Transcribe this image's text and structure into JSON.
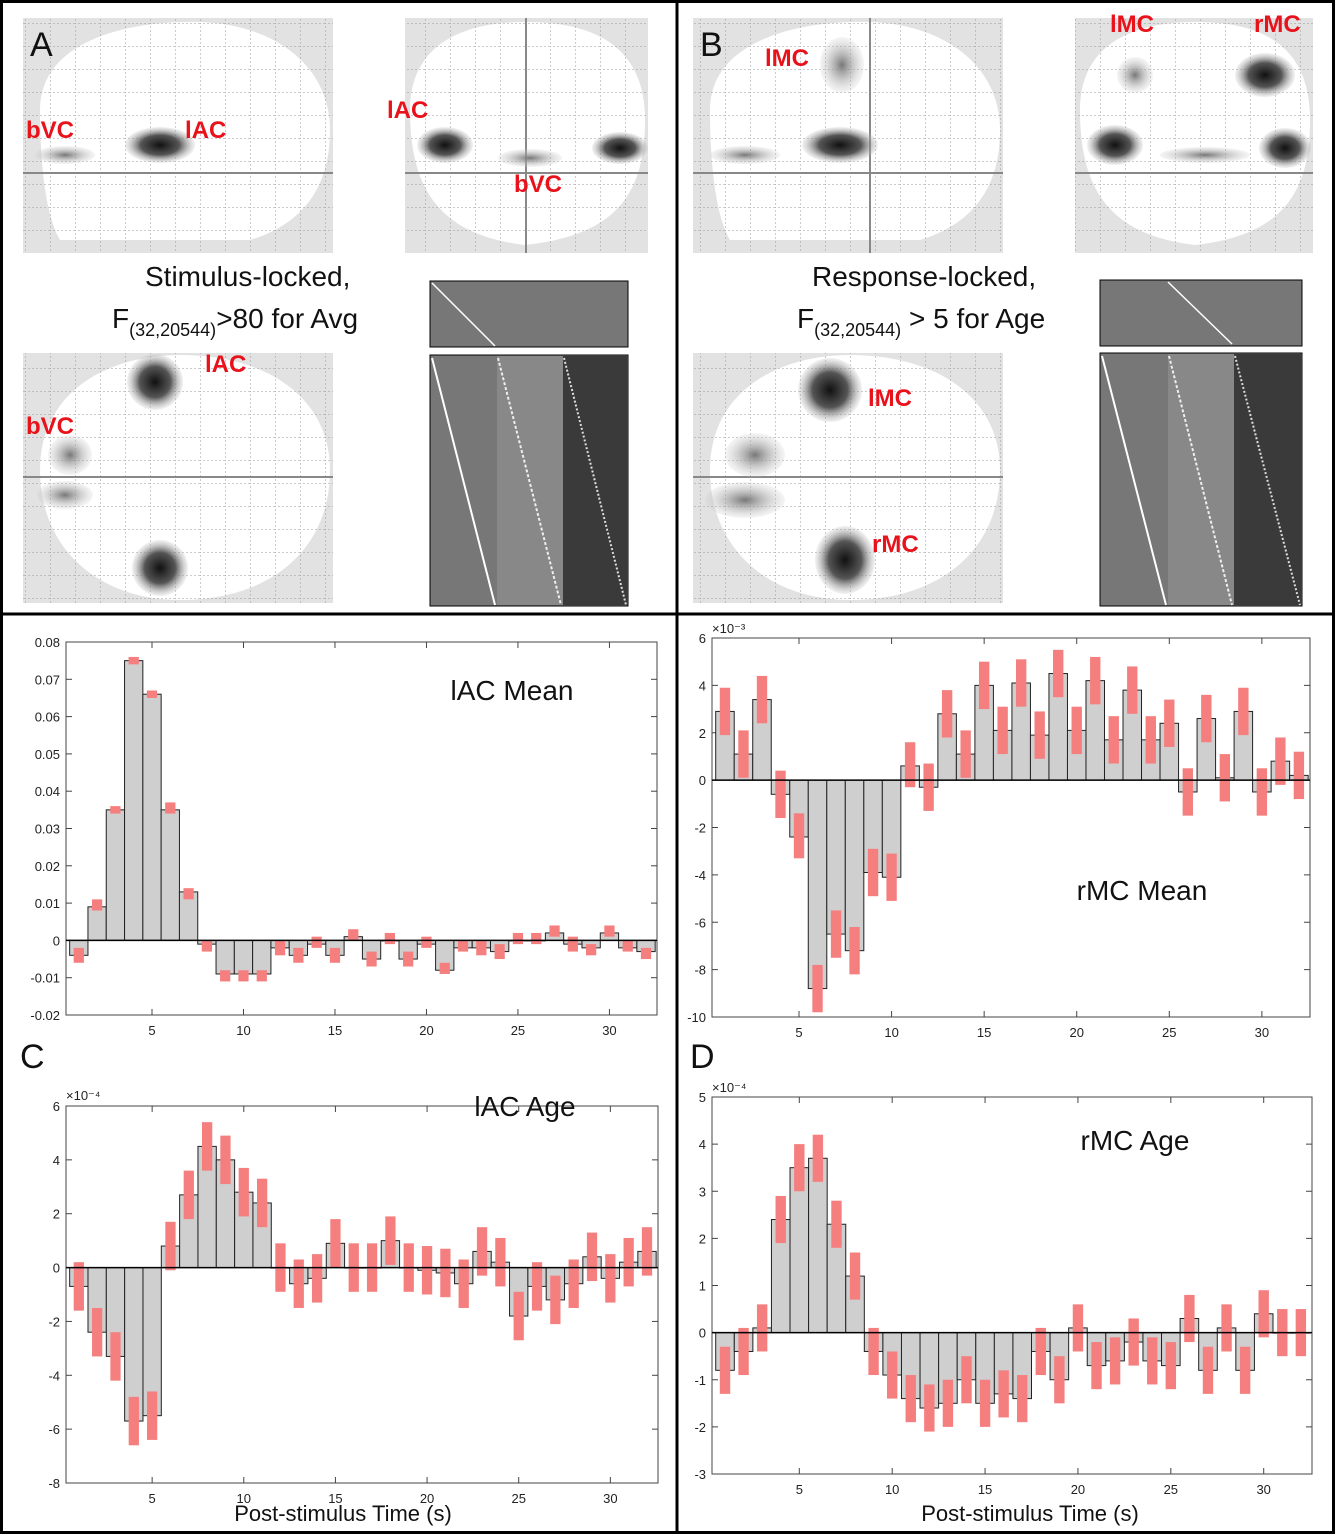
{
  "panels": {
    "A": {
      "letter": "A",
      "caption_line1": "Stimulus-locked,",
      "caption_line2_pre": "F",
      "caption_line2_sub": "(32,20544)",
      "caption_line2_post": ">80 for Avg",
      "labels": [
        "bVC",
        "lAC",
        "lAC",
        "bVC",
        "lAC",
        "bVC"
      ]
    },
    "B": {
      "letter": "B",
      "caption_line1": "Response-locked,",
      "caption_line2_pre": "F",
      "caption_line2_sub": "(32,20544)",
      "caption_line2_post": " > 5 for Age",
      "labels": [
        "lMC",
        "lMC",
        "rMC",
        "lMC",
        "rMC"
      ]
    },
    "C": {
      "letter": "C"
    },
    "D": {
      "letter": "D"
    }
  },
  "xlabel": "Post-stimulus Time (s)",
  "chart_data": [
    {
      "type": "bar",
      "title": "lAC Mean",
      "x": [
        1,
        2,
        3,
        4,
        5,
        6,
        7,
        8,
        9,
        10,
        11,
        12,
        13,
        14,
        15,
        16,
        17,
        18,
        19,
        20,
        21,
        22,
        23,
        24,
        25,
        26,
        27,
        28,
        29,
        30,
        31,
        32
      ],
      "values": [
        -0.004,
        0.009,
        0.035,
        0.075,
        0.066,
        0.035,
        0.013,
        -0.001,
        -0.009,
        -0.009,
        -0.009,
        -0.002,
        -0.004,
        -0.001,
        -0.004,
        0.001,
        -0.005,
        0.0,
        -0.005,
        -0.001,
        -0.008,
        -0.002,
        -0.002,
        -0.003,
        0.0,
        0.0,
        0.002,
        -0.001,
        -0.002,
        0.002,
        -0.002,
        -0.003
      ],
      "error_low": [
        -0.006,
        0.008,
        0.034,
        0.074,
        0.065,
        0.034,
        0.011,
        -0.003,
        -0.011,
        -0.011,
        -0.011,
        -0.004,
        -0.006,
        -0.002,
        -0.006,
        0.0,
        -0.007,
        -0.001,
        -0.007,
        -0.002,
        -0.009,
        -0.003,
        -0.004,
        -0.005,
        -0.001,
        -0.001,
        0.001,
        -0.003,
        -0.004,
        0.001,
        -0.003,
        -0.005
      ],
      "error_high": [
        -0.002,
        0.011,
        0.036,
        0.076,
        0.067,
        0.037,
        0.014,
        0.0,
        -0.008,
        -0.008,
        -0.008,
        0.0,
        -0.002,
        0.001,
        -0.002,
        0.003,
        -0.003,
        0.002,
        -0.003,
        0.001,
        -0.006,
        0.0,
        0.0,
        -0.001,
        0.002,
        0.002,
        0.004,
        0.001,
        -0.001,
        0.004,
        0.0,
        -0.002
      ],
      "xlim": [
        0.3,
        32.6
      ],
      "ylim": [
        -0.02,
        0.08
      ],
      "yticks": [
        -0.02,
        -0.01,
        0,
        0.01,
        0.02,
        0.03,
        0.04,
        0.05,
        0.06,
        0.07,
        0.08
      ],
      "ytick_labels": [
        "-0.02",
        "-0.01",
        "0",
        "0.01",
        "0.02",
        "0.03",
        "0.04",
        "0.05",
        "0.06",
        "0.07",
        "0.08"
      ],
      "xticks": [
        5,
        10,
        15,
        20,
        25,
        30
      ],
      "exponent_label": ""
    },
    {
      "type": "bar",
      "title": "rMC Mean",
      "x": [
        1,
        2,
        3,
        4,
        5,
        6,
        7,
        8,
        9,
        10,
        11,
        12,
        13,
        14,
        15,
        16,
        17,
        18,
        19,
        20,
        21,
        22,
        23,
        24,
        25,
        26,
        27,
        28,
        29,
        30,
        31,
        32
      ],
      "values": [
        2.9,
        1.1,
        3.4,
        -0.6,
        -2.4,
        -8.8,
        -6.5,
        -7.2,
        -3.9,
        -4.1,
        0.6,
        -0.3,
        2.8,
        1.1,
        4.0,
        2.1,
        4.1,
        1.9,
        4.5,
        2.1,
        4.2,
        1.7,
        3.8,
        1.7,
        2.4,
        -0.5,
        2.6,
        0.1,
        2.9,
        -0.5,
        0.8,
        0.2
      ],
      "error_low": [
        1.9,
        0.1,
        2.4,
        -1.6,
        -3.3,
        -9.8,
        -7.5,
        -8.2,
        -4.9,
        -5.1,
        -0.3,
        -1.3,
        1.8,
        0.1,
        3.0,
        1.1,
        3.1,
        0.9,
        3.5,
        1.1,
        3.2,
        0.7,
        2.8,
        0.7,
        1.4,
        -1.5,
        1.6,
        -0.9,
        1.9,
        -1.5,
        -0.2,
        -0.8
      ],
      "error_high": [
        3.9,
        2.1,
        4.4,
        0.4,
        -1.4,
        -7.8,
        -5.5,
        -6.2,
        -2.9,
        -3.1,
        1.6,
        0.7,
        3.8,
        2.1,
        5.0,
        3.1,
        5.1,
        2.9,
        5.5,
        3.1,
        5.2,
        2.7,
        4.8,
        2.7,
        3.4,
        0.5,
        3.6,
        1.1,
        3.9,
        0.5,
        1.8,
        1.2
      ],
      "xlim": [
        0.3,
        32.6
      ],
      "ylim": [
        -10,
        6
      ],
      "yticks": [
        -10,
        -8,
        -6,
        -4,
        -2,
        0,
        2,
        4,
        6
      ],
      "ytick_labels": [
        "-10",
        "-8",
        "-6",
        "-4",
        "-2",
        "0",
        "2",
        "4",
        "6"
      ],
      "xticks": [
        5,
        10,
        15,
        20,
        25,
        30
      ],
      "exponent_label": "×10⁻³"
    },
    {
      "type": "bar",
      "title": "lAC Age",
      "x": [
        1,
        2,
        3,
        4,
        5,
        6,
        7,
        8,
        9,
        10,
        11,
        12,
        13,
        14,
        15,
        16,
        17,
        18,
        19,
        20,
        21,
        22,
        23,
        24,
        25,
        26,
        27,
        28,
        29,
        30,
        31,
        32
      ],
      "values": [
        -0.7,
        -2.4,
        -3.3,
        -5.7,
        -5.5,
        0.8,
        2.7,
        4.5,
        4.0,
        2.8,
        2.4,
        0.0,
        -0.6,
        -0.4,
        0.9,
        0.0,
        0.0,
        1.0,
        0.0,
        -0.1,
        -0.2,
        -0.6,
        0.6,
        0.2,
        -1.8,
        -0.7,
        -1.2,
        -0.6,
        0.4,
        -0.4,
        0.2,
        0.6
      ],
      "error_low": [
        -1.6,
        -3.3,
        -4.2,
        -6.6,
        -6.4,
        -0.1,
        1.8,
        3.6,
        3.1,
        1.9,
        1.5,
        -0.9,
        -1.5,
        -1.3,
        0.0,
        -0.9,
        -0.9,
        0.1,
        -0.9,
        -1.0,
        -1.1,
        -1.5,
        -0.3,
        -0.7,
        -2.7,
        -1.6,
        -2.1,
        -1.5,
        -0.5,
        -1.3,
        -0.7,
        -0.3
      ],
      "error_high": [
        0.2,
        -1.5,
        -2.4,
        -4.8,
        -4.6,
        1.7,
        3.6,
        5.4,
        4.9,
        3.7,
        3.3,
        0.9,
        0.3,
        0.5,
        1.8,
        0.9,
        0.9,
        1.9,
        0.9,
        0.8,
        0.7,
        0.3,
        1.5,
        1.1,
        -0.9,
        0.2,
        -0.3,
        0.3,
        1.3,
        0.5,
        1.1,
        1.5
      ],
      "xlim": [
        0.3,
        32.6
      ],
      "ylim": [
        -8,
        6
      ],
      "yticks": [
        -8,
        -6,
        -4,
        -2,
        0,
        2,
        4,
        6
      ],
      "ytick_labels": [
        "-8",
        "-6",
        "-4",
        "-2",
        "0",
        "2",
        "4",
        "6"
      ],
      "xticks": [
        5,
        10,
        15,
        20,
        25,
        30
      ],
      "exponent_label": "×10⁻⁴"
    },
    {
      "type": "bar",
      "title": "rMC Age",
      "x": [
        1,
        2,
        3,
        4,
        5,
        6,
        7,
        8,
        9,
        10,
        11,
        12,
        13,
        14,
        15,
        16,
        17,
        18,
        19,
        20,
        21,
        22,
        23,
        24,
        25,
        26,
        27,
        28,
        29,
        30,
        31,
        32
      ],
      "values": [
        -0.8,
        -0.4,
        0.1,
        2.4,
        3.5,
        3.7,
        2.3,
        1.2,
        -0.4,
        -0.9,
        -1.4,
        -1.6,
        -1.5,
        -1.0,
        -1.5,
        -1.3,
        -1.4,
        -0.4,
        -1.0,
        0.1,
        -0.7,
        -0.6,
        -0.2,
        -0.6,
        -0.7,
        0.3,
        -0.8,
        0.1,
        -0.8,
        0.4,
        0.0,
        0.0
      ],
      "error_low": [
        -1.3,
        -0.9,
        -0.4,
        1.9,
        3.0,
        3.2,
        1.8,
        0.7,
        -0.9,
        -1.4,
        -1.9,
        -2.1,
        -2.0,
        -1.5,
        -2.0,
        -1.8,
        -1.9,
        -0.9,
        -1.5,
        -0.4,
        -1.2,
        -1.1,
        -0.7,
        -1.1,
        -1.2,
        -0.2,
        -1.3,
        -0.4,
        -1.3,
        -0.1,
        -0.5,
        -0.5
      ],
      "error_high": [
        -0.3,
        0.1,
        0.6,
        2.9,
        4.0,
        4.2,
        2.8,
        1.7,
        0.1,
        -0.4,
        -0.9,
        -1.1,
        -1.0,
        -0.5,
        -1.0,
        -0.8,
        -0.9,
        0.1,
        -0.5,
        0.6,
        -0.2,
        -0.1,
        0.3,
        -0.1,
        -0.2,
        0.8,
        -0.3,
        0.6,
        -0.3,
        0.9,
        0.5,
        0.5
      ],
      "xlim": [
        0.3,
        32.6
      ],
      "ylim": [
        -3,
        5
      ],
      "yticks": [
        -3,
        -2,
        -1,
        0,
        1,
        2,
        3,
        4,
        5
      ],
      "ytick_labels": [
        "-3",
        "-2",
        "-1",
        "0",
        "1",
        "2",
        "3",
        "4",
        "5"
      ],
      "xticks": [
        5,
        10,
        15,
        20,
        25,
        30
      ],
      "exponent_label": "×10⁻⁴"
    }
  ]
}
